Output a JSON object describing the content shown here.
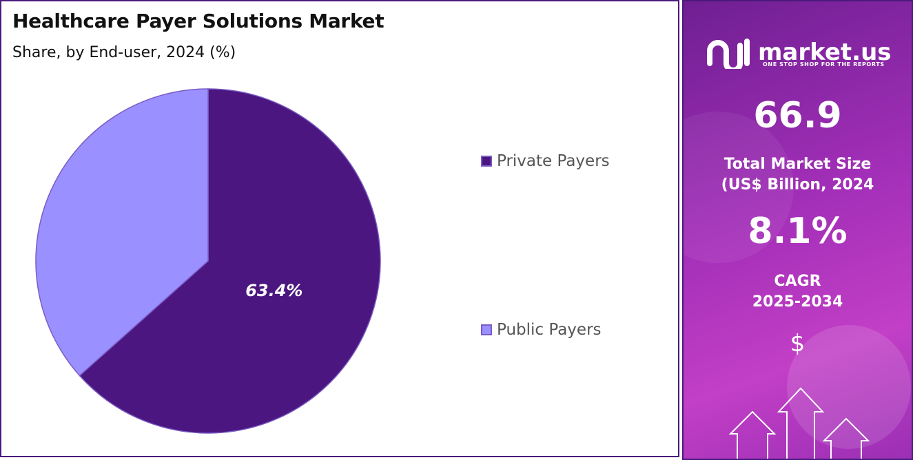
{
  "header": {
    "title": "Healthcare Payer Solutions Market",
    "subtitle": "Share, by End-user, 2024 (%)"
  },
  "chart_data": {
    "type": "pie",
    "title": "Healthcare Payer Solutions Market",
    "subtitle": "Share, by End-user, 2024 (%)",
    "categories": [
      "Private Payers",
      "Public Payers"
    ],
    "values": [
      63.4,
      36.6
    ],
    "data_labels": [
      "63.4%",
      ""
    ],
    "colors": [
      "#4b1680",
      "#9a90ff"
    ],
    "legend": [
      {
        "label": "Private Payers",
        "color": "#4b1680"
      },
      {
        "label": "Public Payers",
        "color": "#9a90ff"
      }
    ],
    "legend_position": "right"
  },
  "sidebar": {
    "brand": "market.us",
    "tagline": "ONE STOP SHOP FOR THE REPORTS",
    "market_size": "66.9",
    "market_size_label_1": "Total Market Size",
    "market_size_label_2": "(US$ Billion, 2024",
    "cagr": "8.1%",
    "cagr_label_1": "CAGR",
    "cagr_label_2": "2025-2034",
    "currency_symbol": "$"
  }
}
